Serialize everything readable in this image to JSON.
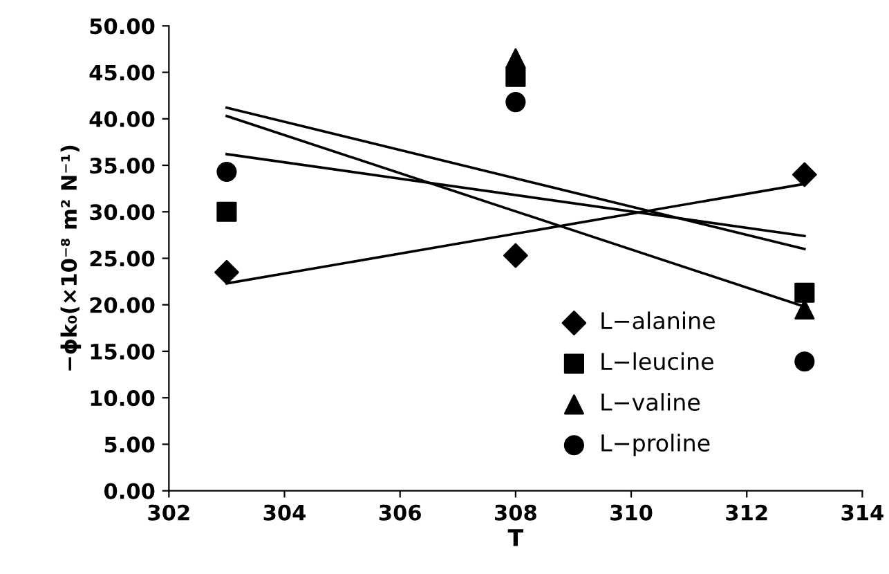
{
  "chart_data": {
    "type": "scatter",
    "xlabel": "T",
    "ylabel": "−ϕk₀(×10⁻⁸ m² N⁻¹)",
    "x": [
      303,
      308,
      313
    ],
    "xlim": [
      302,
      314
    ],
    "xticks": [
      302,
      304,
      306,
      308,
      310,
      312,
      314
    ],
    "ylim": [
      0,
      50
    ],
    "yticks": [
      {
        "value": 0,
        "label": "0.00"
      },
      {
        "value": 5,
        "label": "5.00"
      },
      {
        "value": 10,
        "label": "10.00"
      },
      {
        "value": 15,
        "label": "15.00"
      },
      {
        "value": 20,
        "label": "20.00"
      },
      {
        "value": 25,
        "label": "25.00"
      },
      {
        "value": 30,
        "label": "30.00"
      },
      {
        "value": 35,
        "label": "35.00"
      },
      {
        "value": 40,
        "label": "40.00"
      },
      {
        "value": 45,
        "label": "45.00"
      },
      {
        "value": 50,
        "label": "50.00"
      }
    ],
    "grid": false,
    "legend": "bottom",
    "series": [
      {
        "name": "L−alanine",
        "color": "#000000",
        "marker": "diamond",
        "values": [
          23.5,
          25.3,
          34.0
        ]
      },
      {
        "name": "L−leucine",
        "color": "#000000",
        "marker": "square",
        "values": [
          30.0,
          44.5,
          21.3
        ]
      },
      {
        "name": "L−valine",
        "color": "#000000",
        "marker": "triangle",
        "values": [
          null,
          46.5,
          19.5
        ]
      },
      {
        "name": "L−proline",
        "color": "#000000",
        "marker": "circle",
        "values": [
          34.3,
          41.8,
          13.9
        ]
      },
      {
        "type": "line",
        "color": "#000000",
        "marker": "none",
        "values": [
          22.3,
          null,
          33.0
        ]
      },
      {
        "type": "line",
        "color": "#000000",
        "marker": "none",
        "values": [
          36.2,
          null,
          27.4
        ]
      },
      {
        "type": "line",
        "color": "#000000",
        "marker": "none",
        "values": [
          41.2,
          null,
          26.0
        ]
      },
      {
        "type": "line",
        "color": "#000000",
        "marker": "none",
        "values": [
          40.3,
          null,
          19.8
        ]
      }
    ]
  }
}
